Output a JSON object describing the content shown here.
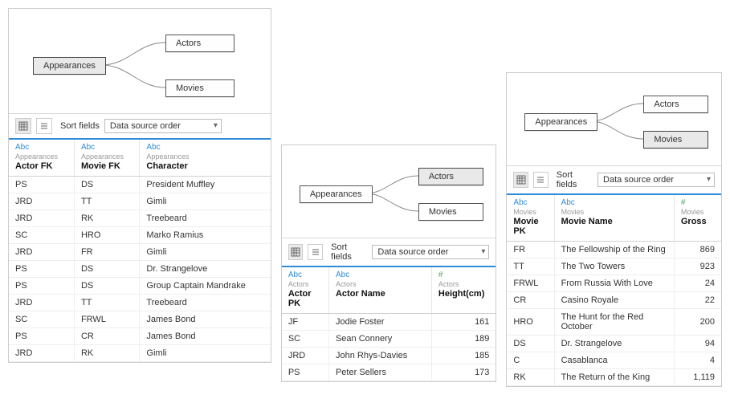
{
  "sort_label": "Sort fields",
  "dropdown_value": "Data source order",
  "diagram": {
    "root": "Appearances",
    "child_a": "Actors",
    "child_b": "Movies"
  },
  "panel1": {
    "columns": [
      {
        "type": "Abc",
        "src": "Appearances",
        "name": "Actor FK",
        "kind": "text"
      },
      {
        "type": "Abc",
        "src": "Appearances",
        "name": "Movie FK",
        "kind": "text"
      },
      {
        "type": "Abc",
        "src": "Appearances",
        "name": "Character",
        "kind": "text"
      }
    ],
    "rows": [
      [
        "PS",
        "DS",
        "President Muffley"
      ],
      [
        "JRD",
        "TT",
        "Gimli"
      ],
      [
        "JRD",
        "RK",
        "Treebeard"
      ],
      [
        "SC",
        "HRO",
        "Marko Ramius"
      ],
      [
        "JRD",
        "FR",
        "Gimli"
      ],
      [
        "PS",
        "DS",
        "Dr. Strangelove"
      ],
      [
        "PS",
        "DS",
        "Group Captain Mandrake"
      ],
      [
        "JRD",
        "TT",
        "Treebeard"
      ],
      [
        "SC",
        "FRWL",
        "James Bond"
      ],
      [
        "PS",
        "CR",
        "James Bond"
      ],
      [
        "JRD",
        "RK",
        "Gimli"
      ]
    ]
  },
  "panel2": {
    "columns": [
      {
        "type": "Abc",
        "src": "Actors",
        "name": "Actor PK",
        "kind": "text"
      },
      {
        "type": "Abc",
        "src": "Actors",
        "name": "Actor Name",
        "kind": "text"
      },
      {
        "type": "#",
        "src": "Actors",
        "name": "Height(cm)",
        "kind": "num"
      }
    ],
    "rows": [
      [
        "JF",
        "Jodie Foster",
        "161"
      ],
      [
        "SC",
        "Sean Connery",
        "189"
      ],
      [
        "JRD",
        "John Rhys-Davies",
        "185"
      ],
      [
        "PS",
        "Peter Sellers",
        "173"
      ]
    ]
  },
  "panel3": {
    "columns": [
      {
        "type": "Abc",
        "src": "Movies",
        "name": "Movie PK",
        "kind": "text"
      },
      {
        "type": "Abc",
        "src": "Movies",
        "name": "Movie Name",
        "kind": "text"
      },
      {
        "type": "#",
        "src": "Movies",
        "name": "Gross",
        "kind": "num"
      }
    ],
    "rows": [
      [
        "FR",
        "The Fellowship of the Ring",
        "869"
      ],
      [
        "TT",
        "The Two Towers",
        "923"
      ],
      [
        "FRWL",
        "From Russia With Love",
        "24"
      ],
      [
        "CR",
        "Casino Royale",
        "22"
      ],
      [
        "HRO",
        "The Hunt for the Red October",
        "200"
      ],
      [
        "DS",
        "Dr. Strangelove",
        "94"
      ],
      [
        "C",
        "Casablanca",
        "4"
      ],
      [
        "RK",
        "The Return of the King",
        "1,119"
      ]
    ]
  }
}
